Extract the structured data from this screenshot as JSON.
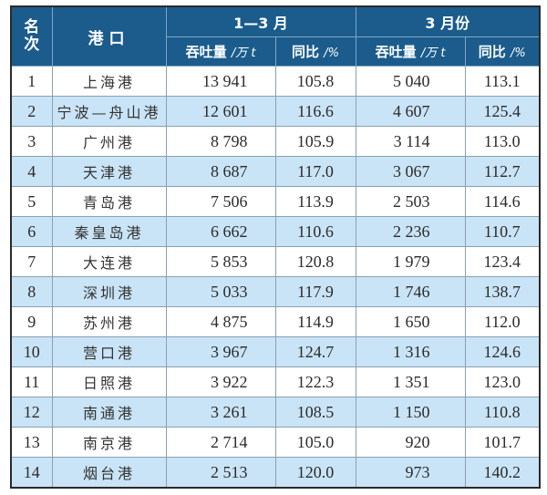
{
  "table": {
    "headers": {
      "rank": "名\n次",
      "rank_line1": "名",
      "rank_line2": "次",
      "port": "港口",
      "period1": "1—3 月",
      "period2": "3 月份",
      "throughput": "吞吐量",
      "throughput_unit": "/万 t",
      "yoy": "同比",
      "yoy_unit": "/%"
    },
    "rows": [
      {
        "rank": "1",
        "port": "上海港",
        "q1_volume": "13 941",
        "q1_yoy": "105.8",
        "mar_volume": "5 040",
        "mar_yoy": "113.1"
      },
      {
        "rank": "2",
        "port": "宁波—舟山港",
        "q1_volume": "12 601",
        "q1_yoy": "116.6",
        "mar_volume": "4 607",
        "mar_yoy": "125.4"
      },
      {
        "rank": "3",
        "port": "广州港",
        "q1_volume": "8 798",
        "q1_yoy": "105.9",
        "mar_volume": "3 114",
        "mar_yoy": "113.0"
      },
      {
        "rank": "4",
        "port": "天津港",
        "q1_volume": "8 687",
        "q1_yoy": "117.0",
        "mar_volume": "3 067",
        "mar_yoy": "112.7"
      },
      {
        "rank": "5",
        "port": "青岛港",
        "q1_volume": "7 506",
        "q1_yoy": "113.9",
        "mar_volume": "2 503",
        "mar_yoy": "114.6"
      },
      {
        "rank": "6",
        "port": "秦皇岛港",
        "q1_volume": "6 662",
        "q1_yoy": "110.6",
        "mar_volume": "2 236",
        "mar_yoy": "110.7"
      },
      {
        "rank": "7",
        "port": "大连港",
        "q1_volume": "5 853",
        "q1_yoy": "120.8",
        "mar_volume": "1 979",
        "mar_yoy": "123.4"
      },
      {
        "rank": "8",
        "port": "深圳港",
        "q1_volume": "5 033",
        "q1_yoy": "117.9",
        "mar_volume": "1 746",
        "mar_yoy": "138.7"
      },
      {
        "rank": "9",
        "port": "苏州港",
        "q1_volume": "4 875",
        "q1_yoy": "114.9",
        "mar_volume": "1 650",
        "mar_yoy": "112.0"
      },
      {
        "rank": "10",
        "port": "营口港",
        "q1_volume": "3 967",
        "q1_yoy": "124.7",
        "mar_volume": "1 316",
        "mar_yoy": "124.6"
      },
      {
        "rank": "11",
        "port": "日照港",
        "q1_volume": "3 922",
        "q1_yoy": "122.3",
        "mar_volume": "1 351",
        "mar_yoy": "123.0"
      },
      {
        "rank": "12",
        "port": "南通港",
        "q1_volume": "3 261",
        "q1_yoy": "108.5",
        "mar_volume": "1 150",
        "mar_yoy": "110.8"
      },
      {
        "rank": "13",
        "port": "南京港",
        "q1_volume": "2 714",
        "q1_yoy": "105.0",
        "mar_volume": "920",
        "mar_yoy": "101.7"
      },
      {
        "rank": "14",
        "port": "烟台港",
        "q1_volume": "2 513",
        "q1_yoy": "120.0",
        "mar_volume": "973",
        "mar_yoy": "140.2"
      }
    ]
  },
  "colors": {
    "header_bg": "#1b5c8c",
    "header_text": "#ffffff",
    "alt_row_bg": "#c9e4f6",
    "row_bg": "#ffffff"
  }
}
